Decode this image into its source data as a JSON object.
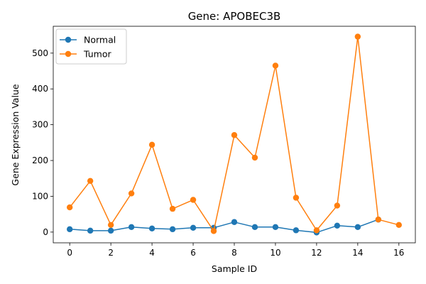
{
  "chart_data": {
    "type": "line",
    "title": "Gene: APOBEC3B",
    "xlabel": "Sample ID",
    "ylabel": "Gene Expression Value",
    "xlim": [
      -0.8,
      16.8
    ],
    "ylim": [
      -30,
      575
    ],
    "xticks": [
      0,
      2,
      4,
      6,
      8,
      10,
      12,
      14,
      16
    ],
    "yticks": [
      0,
      100,
      200,
      300,
      400,
      500
    ],
    "grid": false,
    "legend_position": "top-left",
    "series": [
      {
        "name": "Normal",
        "color": "#1f77b4",
        "x": [
          0,
          1,
          2,
          3,
          4,
          5,
          6,
          7,
          8,
          9,
          10,
          11,
          12,
          13,
          14,
          15
        ],
        "y": [
          8,
          4,
          4,
          14,
          10,
          8,
          12,
          12,
          28,
          14,
          14,
          5,
          -1,
          18,
          14,
          35
        ]
      },
      {
        "name": "Tumor",
        "color": "#ff7f0e",
        "x": [
          0,
          1,
          2,
          3,
          4,
          5,
          6,
          7,
          8,
          9,
          10,
          11,
          12,
          13,
          14,
          15,
          16
        ],
        "y": [
          69,
          143,
          20,
          108,
          244,
          65,
          90,
          3,
          271,
          208,
          465,
          96,
          5,
          74,
          546,
          35,
          20
        ]
      }
    ]
  }
}
